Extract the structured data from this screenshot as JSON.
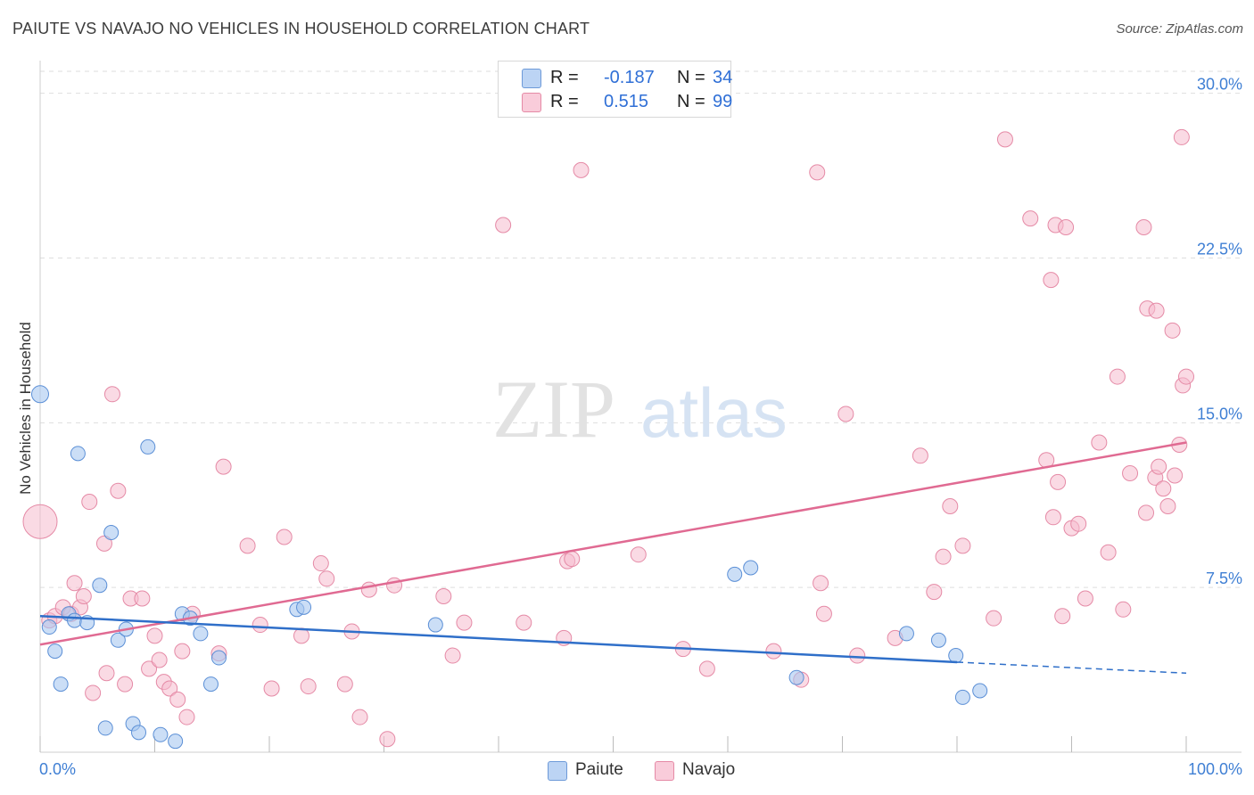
{
  "header": {
    "title": "PAIUTE VS NAVAJO NO VEHICLES IN HOUSEHOLD CORRELATION CHART",
    "source": "Source: ZipAtlas.com"
  },
  "watermark": {
    "zip": "ZIP",
    "atlas": "atlas"
  },
  "legend": {
    "rows": [
      {
        "r_label": "R =",
        "r_value": "-0.187",
        "n_label": "N =",
        "n_value": "34"
      },
      {
        "r_label": "R =",
        "r_value": "0.515",
        "n_label": "N =",
        "n_value": "99"
      }
    ]
  },
  "colors": {
    "paiute_fill": "#a9c8f0",
    "paiute_stroke": "#5b8fd6",
    "paiute_line": "#2f6fc9",
    "navajo_fill": "#f6bccd",
    "navajo_stroke": "#e58aa6",
    "navajo_line": "#e06a92",
    "tick_label": "#3f7fd4",
    "grid": "#dedede"
  },
  "chart_data": {
    "type": "scatter",
    "title": "PAIUTE VS NAVAJO NO VEHICLES IN HOUSEHOLD CORRELATION CHART",
    "xlabel": "",
    "ylabel": "No Vehicles in Household",
    "xlim": [
      0,
      100
    ],
    "ylim": [
      0,
      31
    ],
    "x_tick_labels": [
      "0.0%",
      "100.0%"
    ],
    "y_ticks": [
      7.5,
      15.0,
      22.5,
      30.0
    ],
    "y_tick_labels": [
      "7.5%",
      "15.0%",
      "22.5%",
      "30.0%"
    ],
    "series": [
      {
        "name": "Paiute",
        "r": -0.187,
        "n": 34,
        "trend": {
          "x0": 0,
          "y0": 6.2,
          "x1": 80,
          "y1": 4.1,
          "dash_to_x": 100,
          "dash_to_y": 3.6
        },
        "points": [
          [
            0,
            16.3
          ],
          [
            0.8,
            5.7
          ],
          [
            1.3,
            4.6
          ],
          [
            1.8,
            3.1
          ],
          [
            2.5,
            6.3
          ],
          [
            3.0,
            6.0
          ],
          [
            3.3,
            13.6
          ],
          [
            4.1,
            5.9
          ],
          [
            5.2,
            7.6
          ],
          [
            5.7,
            1.1
          ],
          [
            6.2,
            10.0
          ],
          [
            6.8,
            5.1
          ],
          [
            7.5,
            5.6
          ],
          [
            8.1,
            1.3
          ],
          [
            8.6,
            0.9
          ],
          [
            9.4,
            13.9
          ],
          [
            10.5,
            0.8
          ],
          [
            11.8,
            0.5
          ],
          [
            12.4,
            6.3
          ],
          [
            13.1,
            6.1
          ],
          [
            14.0,
            5.4
          ],
          [
            14.9,
            3.1
          ],
          [
            15.6,
            4.3
          ],
          [
            22.4,
            6.5
          ],
          [
            23.0,
            6.6
          ],
          [
            34.5,
            5.8
          ],
          [
            60.6,
            8.1
          ],
          [
            62.0,
            8.4
          ],
          [
            66.0,
            3.4
          ],
          [
            75.6,
            5.4
          ],
          [
            78.4,
            5.1
          ],
          [
            79.9,
            4.4
          ],
          [
            80.5,
            2.5
          ],
          [
            82.0,
            2.8
          ]
        ]
      },
      {
        "name": "Navajo",
        "r": 0.515,
        "n": 99,
        "trend": {
          "x0": 0,
          "y0": 4.9,
          "x1": 100,
          "y1": 14.1
        },
        "points": [
          [
            0,
            10.5
          ],
          [
            0.8,
            6.0
          ],
          [
            1.3,
            6.2
          ],
          [
            2.0,
            6.6
          ],
          [
            2.7,
            6.3
          ],
          [
            3.0,
            7.7
          ],
          [
            3.5,
            6.6
          ],
          [
            3.8,
            7.1
          ],
          [
            4.3,
            11.4
          ],
          [
            4.6,
            2.7
          ],
          [
            5.6,
            9.5
          ],
          [
            5.8,
            3.6
          ],
          [
            6.3,
            16.3
          ],
          [
            6.8,
            11.9
          ],
          [
            7.4,
            3.1
          ],
          [
            7.9,
            7.0
          ],
          [
            8.9,
            7.0
          ],
          [
            9.5,
            3.8
          ],
          [
            10.0,
            5.3
          ],
          [
            10.4,
            4.2
          ],
          [
            10.8,
            3.2
          ],
          [
            11.3,
            2.9
          ],
          [
            12.0,
            2.4
          ],
          [
            12.4,
            4.6
          ],
          [
            12.8,
            1.6
          ],
          [
            13.3,
            6.3
          ],
          [
            15.6,
            4.5
          ],
          [
            16.0,
            13.0
          ],
          [
            18.1,
            9.4
          ],
          [
            19.2,
            5.8
          ],
          [
            20.2,
            2.9
          ],
          [
            21.3,
            9.8
          ],
          [
            22.8,
            5.3
          ],
          [
            23.4,
            3.0
          ],
          [
            24.5,
            8.6
          ],
          [
            25.0,
            7.9
          ],
          [
            26.6,
            3.1
          ],
          [
            27.2,
            5.5
          ],
          [
            27.9,
            1.6
          ],
          [
            28.7,
            7.4
          ],
          [
            30.3,
            0.6
          ],
          [
            30.9,
            7.6
          ],
          [
            35.2,
            7.1
          ],
          [
            36.0,
            4.4
          ],
          [
            37.0,
            5.9
          ],
          [
            42.2,
            5.9
          ],
          [
            45.7,
            5.2
          ],
          [
            46.0,
            8.7
          ],
          [
            46.4,
            8.8
          ],
          [
            52.2,
            9.0
          ],
          [
            56.1,
            4.7
          ],
          [
            58.2,
            3.8
          ],
          [
            64.0,
            4.6
          ],
          [
            66.4,
            3.3
          ],
          [
            68.1,
            7.7
          ],
          [
            68.4,
            6.3
          ],
          [
            70.3,
            15.4
          ],
          [
            71.3,
            4.4
          ],
          [
            74.6,
            5.2
          ],
          [
            76.8,
            13.5
          ],
          [
            78.0,
            7.3
          ],
          [
            78.8,
            8.9
          ],
          [
            79.4,
            11.2
          ],
          [
            80.5,
            9.4
          ],
          [
            83.2,
            6.1
          ],
          [
            87.8,
            13.3
          ],
          [
            88.4,
            10.7
          ],
          [
            88.8,
            12.3
          ],
          [
            89.2,
            6.2
          ],
          [
            90.0,
            10.2
          ],
          [
            90.6,
            10.4
          ],
          [
            91.2,
            7.0
          ],
          [
            92.4,
            14.1
          ],
          [
            93.2,
            9.1
          ],
          [
            94.0,
            17.1
          ],
          [
            94.5,
            6.5
          ],
          [
            95.1,
            12.7
          ],
          [
            96.5,
            10.9
          ],
          [
            97.3,
            12.5
          ],
          [
            97.6,
            13.0
          ],
          [
            98.0,
            12.0
          ],
          [
            98.4,
            11.2
          ],
          [
            99.0,
            12.6
          ],
          [
            99.4,
            14.0
          ],
          [
            99.6,
            28.0
          ],
          [
            40.4,
            24.0
          ],
          [
            47.2,
            26.5
          ],
          [
            67.8,
            26.4
          ],
          [
            84.2,
            27.9
          ],
          [
            86.4,
            24.3
          ],
          [
            88.2,
            21.5
          ],
          [
            88.6,
            24.0
          ],
          [
            89.5,
            23.9
          ],
          [
            96.3,
            23.9
          ],
          [
            96.6,
            20.2
          ],
          [
            97.4,
            20.1
          ],
          [
            98.8,
            19.2
          ],
          [
            99.7,
            16.7
          ],
          [
            100,
            17.1
          ]
        ]
      }
    ]
  },
  "bottom_legend": {
    "items": [
      "Paiute",
      "Navajo"
    ]
  }
}
